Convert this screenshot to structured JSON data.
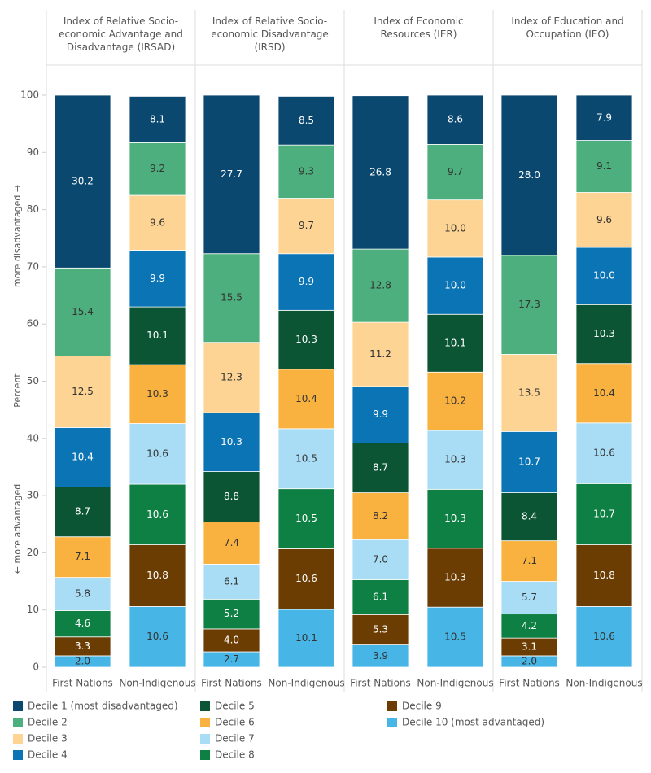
{
  "chart_data": {
    "type": "stacked-bar",
    "ylabel": "Percent",
    "annotations": [
      "more disadvantaged →",
      "← more advantaged"
    ],
    "ylim": [
      0,
      100
    ],
    "yticks": [
      0,
      10,
      20,
      30,
      40,
      50,
      60,
      70,
      80,
      90,
      100
    ],
    "series": [
      {
        "name": "Decile 1 (most disadvantaged)",
        "color": "#0b4870"
      },
      {
        "name": "Decile 2",
        "color": "#4caf7d"
      },
      {
        "name": "Decile 3",
        "color": "#fdd493"
      },
      {
        "name": "Decile 4",
        "color": "#0b74b5"
      },
      {
        "name": "Decile 5",
        "color": "#0b5535"
      },
      {
        "name": "Decile 6",
        "color": "#f9b23f"
      },
      {
        "name": "Decile 7",
        "color": "#a9ddf5"
      },
      {
        "name": "Decile 8",
        "color": "#0e8043"
      },
      {
        "name": "Decile 9",
        "color": "#6b3d02"
      },
      {
        "name": "Decile 10 (most advantaged)",
        "color": "#47b6e6"
      }
    ],
    "facets": [
      {
        "title": "Index of Relative Socio-economic Advantage and Disadvantage (IRSAD)",
        "categories": [
          "First Nations",
          "Non-Indigenous"
        ],
        "series": [
          {
            "values": [
              30.2,
              8.1
            ],
            "value_labels": [
              "30.2",
              "8.1"
            ]
          },
          {
            "values": [
              15.4,
              9.2
            ],
            "value_labels": [
              "15.4",
              "9.2"
            ]
          },
          {
            "values": [
              12.5,
              9.6
            ],
            "value_labels": [
              "12.5",
              "9.6"
            ]
          },
          {
            "values": [
              10.4,
              9.9
            ],
            "value_labels": [
              "10.4",
              "9.9"
            ]
          },
          {
            "values": [
              8.7,
              10.1
            ],
            "value_labels": [
              "8.7",
              "10.1"
            ]
          },
          {
            "values": [
              7.1,
              10.3
            ],
            "value_labels": [
              "7.1",
              "10.3"
            ]
          },
          {
            "values": [
              5.8,
              10.6
            ],
            "value_labels": [
              "5.8",
              "10.6"
            ]
          },
          {
            "values": [
              4.6,
              10.6
            ],
            "value_labels": [
              "4.6",
              "10.6"
            ]
          },
          {
            "values": [
              3.3,
              10.8
            ],
            "value_labels": [
              "3.3",
              "10.8"
            ]
          },
          {
            "values": [
              2.0,
              10.6
            ],
            "value_labels": [
              "2.0",
              "10.6"
            ]
          }
        ]
      },
      {
        "title": "Index of Relative Socio-economic Disadvantage (IRSD)",
        "categories": [
          "First Nations",
          "Non-Indigenous"
        ],
        "series": [
          {
            "values": [
              27.7,
              8.5
            ],
            "value_labels": [
              "27.7",
              "8.5"
            ]
          },
          {
            "values": [
              15.5,
              9.3
            ],
            "value_labels": [
              "15.5",
              "9.3"
            ]
          },
          {
            "values": [
              12.3,
              9.7
            ],
            "value_labels": [
              "12.3",
              "9.7"
            ]
          },
          {
            "values": [
              10.3,
              9.9
            ],
            "value_labels": [
              "10.3",
              "9.9"
            ]
          },
          {
            "values": [
              8.8,
              10.3
            ],
            "value_labels": [
              "8.8",
              "10.3"
            ]
          },
          {
            "values": [
              7.4,
              10.4
            ],
            "value_labels": [
              "7.4",
              "10.4"
            ]
          },
          {
            "values": [
              6.1,
              10.5
            ],
            "value_labels": [
              "6.1",
              "10.5"
            ]
          },
          {
            "values": [
              5.2,
              10.5
            ],
            "value_labels": [
              "5.2",
              "10.5"
            ]
          },
          {
            "values": [
              4.0,
              10.6
            ],
            "value_labels": [
              "4.0",
              "10.6"
            ]
          },
          {
            "values": [
              2.7,
              10.1
            ],
            "value_labels": [
              "2.7",
              "10.1"
            ]
          }
        ]
      },
      {
        "title": "Index of Economic Resources (IER)",
        "categories": [
          "First Nations",
          "Non-Indigenous"
        ],
        "series": [
          {
            "values": [
              26.8,
              8.6
            ],
            "value_labels": [
              "26.8",
              "8.6"
            ]
          },
          {
            "values": [
              12.8,
              9.7
            ],
            "value_labels": [
              "12.8",
              "9.7"
            ]
          },
          {
            "values": [
              11.2,
              10.0
            ],
            "value_labels": [
              "11.2",
              "10.0"
            ]
          },
          {
            "values": [
              9.9,
              10.0
            ],
            "value_labels": [
              "9.9",
              "10.0"
            ]
          },
          {
            "values": [
              8.7,
              10.1
            ],
            "value_labels": [
              "8.7",
              "10.1"
            ]
          },
          {
            "values": [
              8.2,
              10.2
            ],
            "value_labels": [
              "8.2",
              "10.2"
            ]
          },
          {
            "values": [
              7.0,
              10.3
            ],
            "value_labels": [
              "7.0",
              "10.3"
            ]
          },
          {
            "values": [
              6.1,
              10.3
            ],
            "value_labels": [
              "6.1",
              "10.3"
            ]
          },
          {
            "values": [
              5.3,
              10.3
            ],
            "value_labels": [
              "5.3",
              "10.3"
            ]
          },
          {
            "values": [
              3.9,
              10.5
            ],
            "value_labels": [
              "3.9",
              "10.5"
            ]
          }
        ]
      },
      {
        "title": "Index of Education and Occupation (IEO)",
        "categories": [
          "First Nations",
          "Non-Indigenous"
        ],
        "series": [
          {
            "values": [
              28.0,
              7.9
            ],
            "value_labels": [
              "28.0",
              "7.9"
            ]
          },
          {
            "values": [
              17.3,
              9.1
            ],
            "value_labels": [
              "17.3",
              "9.1"
            ]
          },
          {
            "values": [
              13.5,
              9.6
            ],
            "value_labels": [
              "13.5",
              "9.6"
            ]
          },
          {
            "values": [
              10.7,
              10.0
            ],
            "value_labels": [
              "10.7",
              "10.0"
            ]
          },
          {
            "values": [
              8.4,
              10.3
            ],
            "value_labels": [
              "8.4",
              "10.3"
            ]
          },
          {
            "values": [
              7.1,
              10.4
            ],
            "value_labels": [
              "7.1",
              "10.4"
            ]
          },
          {
            "values": [
              5.7,
              10.6
            ],
            "value_labels": [
              "5.7",
              "10.6"
            ]
          },
          {
            "values": [
              4.2,
              10.7
            ],
            "value_labels": [
              "4.2",
              "10.7"
            ]
          },
          {
            "values": [
              3.1,
              10.8
            ],
            "value_labels": [
              "3.1",
              "10.8"
            ]
          },
          {
            "values": [
              2.0,
              10.6
            ],
            "value_labels": [
              "2.0",
              "10.6"
            ]
          }
        ]
      }
    ]
  }
}
